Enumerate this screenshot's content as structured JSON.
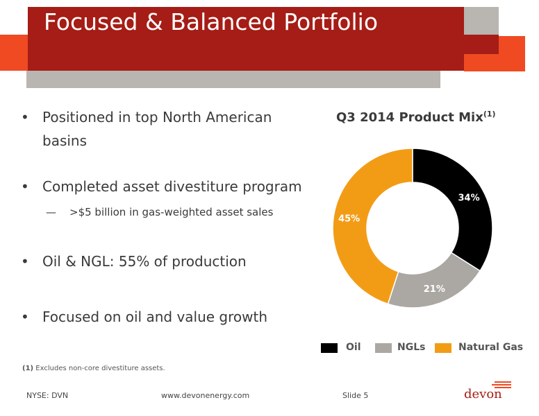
{
  "header": {
    "title": "Focused & Balanced Portfolio"
  },
  "bullets": [
    {
      "text": "Positioned in top North American basins"
    },
    {
      "text": "Completed asset divestiture program",
      "sub": ">$5 billion in gas-weighted asset sales"
    },
    {
      "text": "Oil & NGL: 55% of production"
    },
    {
      "text": "Focused on oil and value growth"
    }
  ],
  "bullet_glyph": "•",
  "sub_glyph": "—",
  "chart_data": {
    "type": "pie",
    "donut": true,
    "title": "Q3 2014 Product Mix",
    "title_footnote": "(1)",
    "categories": [
      "Oil",
      "NGLs",
      "Natural Gas"
    ],
    "values": [
      34,
      21,
      45
    ],
    "labels": [
      "34%",
      "21%",
      "45%"
    ],
    "colors": [
      "#000000",
      "#aba7a2",
      "#f29c16"
    ],
    "label_colors": [
      "#ffffff",
      "#ffffff",
      "#ffffff"
    ],
    "legend_position": "bottom"
  },
  "footnote": {
    "marker": "(1)",
    "text": "Excludes non-core divestiture assets."
  },
  "footer": {
    "ticker": "NYSE: DVN",
    "website": "www.devonenergy.com",
    "slide": "Slide 5",
    "logo_text": "devon"
  },
  "colors": {
    "brand_red": "#a51d16",
    "brand_orange": "#f04a23",
    "gray": "#b9b5b0"
  }
}
